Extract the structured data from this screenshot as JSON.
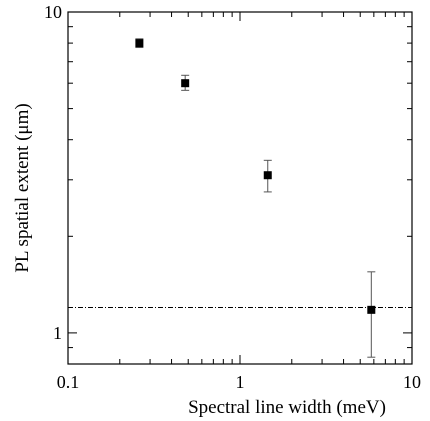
{
  "chart_data": {
    "type": "scatter",
    "title": "",
    "xlabel": "Spectral line width (meV)",
    "ylabel": "PL spatial extent (μm)",
    "x_scale": "log",
    "y_scale": "log",
    "xlim": [
      0.1,
      10
    ],
    "ylim": [
      0.8,
      10
    ],
    "x_ticks": [
      {
        "value": 0.1,
        "label": "0.1"
      },
      {
        "value": 1,
        "label": "1"
      },
      {
        "value": 10,
        "label": "10"
      }
    ],
    "y_ticks": [
      {
        "value": 1,
        "label": "1"
      },
      {
        "value": 10,
        "label": "10"
      }
    ],
    "grid": false,
    "legend": "none",
    "marker": "square",
    "color": "#000000",
    "points": [
      {
        "x": 0.26,
        "y": 8.0,
        "y_err_low": 7.75,
        "y_err_high": 8.25
      },
      {
        "x": 0.48,
        "y": 6.0,
        "y_err_low": 5.7,
        "y_err_high": 6.35
      },
      {
        "x": 1.45,
        "y": 3.1,
        "y_err_low": 2.75,
        "y_err_high": 3.45
      },
      {
        "x": 5.8,
        "y": 1.18,
        "y_err_low": 0.84,
        "y_err_high": 1.55
      }
    ],
    "reference_line": {
      "y": 1.2,
      "style": "dash-dot"
    }
  }
}
